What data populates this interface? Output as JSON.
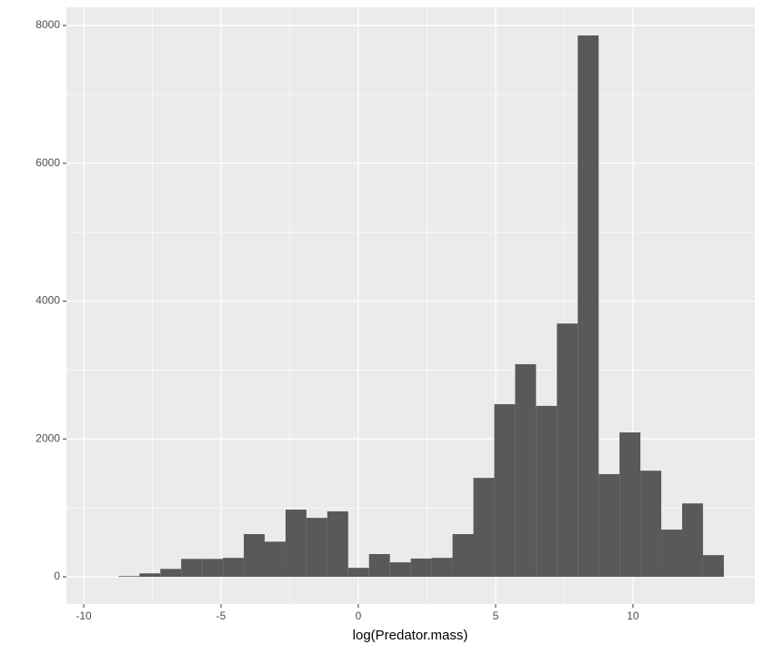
{
  "chart_data": {
    "type": "histogram",
    "x_label": "log(Predator.mass)",
    "bins": [
      -8.73,
      -7.97,
      -7.21,
      -6.45,
      -5.69,
      -4.93,
      -4.17,
      -3.41,
      -2.65,
      -1.89,
      -1.13,
      -0.37,
      0.39,
      1.15,
      1.91,
      2.67,
      3.43,
      4.19,
      4.95,
      5.71,
      6.47,
      7.23,
      7.99,
      8.75,
      9.51,
      10.27,
      11.03,
      11.79,
      12.55,
      13.31
    ],
    "values": [
      10,
      50,
      115,
      260,
      260,
      275,
      620,
      510,
      975,
      855,
      950,
      130,
      330,
      210,
      265,
      275,
      620,
      1435,
      2505,
      3085,
      2480,
      3675,
      7855,
      1490,
      2095,
      1540,
      685,
      1065,
      315
    ],
    "color": "#595959",
    "xlim": [
      -10.63,
      14.44
    ],
    "xticks": [
      -10,
      -5,
      0,
      5,
      10
    ],
    "ylim": [
      -395,
      8264
    ],
    "yticks": [
      0,
      2000,
      4000,
      6000,
      8000
    ],
    "grid": true
  }
}
